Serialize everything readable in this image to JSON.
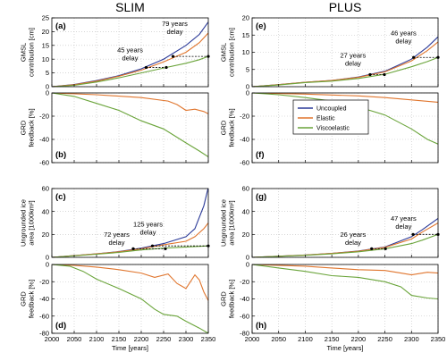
{
  "colors": {
    "uncoupled": "#2b3a98",
    "elastic": "#e0752d",
    "viscoelastic": "#6aa43a",
    "grid": "#bfbfbf",
    "axis": "#000000"
  },
  "chart_data": {
    "type": "line",
    "legend": {
      "placement": "top-right of panel (f)",
      "entries": [
        "Uncoupled",
        "Elastic",
        "Viscoelastic"
      ]
    },
    "x_axis": {
      "label": "Time [years]",
      "range": [
        2000,
        2350
      ],
      "ticks": [
        "2000",
        "2050",
        "2100",
        "2150",
        "2200",
        "2250",
        "2300",
        "2350"
      ]
    },
    "columns": [
      {
        "title": "SLIM"
      },
      {
        "title": "PLUS"
      }
    ],
    "row_labels": [
      [
        "GMSL",
        "contribution [cm]"
      ],
      [
        "GRD",
        "feedback [%]"
      ],
      [
        "Ungrounded ice",
        "area [1000km²]"
      ],
      [
        "GRD",
        "feedback [%]"
      ]
    ],
    "panels": [
      {
        "id": "a",
        "label": "(a)",
        "row": 0,
        "col": 0,
        "ylim": [
          0,
          25
        ],
        "yticks": [
          "0",
          "5",
          "10",
          "15",
          "20",
          "25"
        ],
        "series": [
          {
            "key": "uncoupled",
            "x": [
              2000,
              2050,
              2100,
              2150,
              2200,
              2250,
              2300,
              2330,
              2350
            ],
            "y": [
              0,
              0.8,
              2.2,
              4,
              6.5,
              10,
              15,
              19,
              23.5
            ]
          },
          {
            "key": "elastic",
            "x": [
              2000,
              2050,
              2100,
              2150,
              2200,
              2250,
              2300,
              2330,
              2350
            ],
            "y": [
              0,
              0.7,
              2,
              3.8,
              6,
              9,
              12.5,
              16,
              19.5
            ]
          },
          {
            "key": "viscoelastic",
            "x": [
              2000,
              2050,
              2100,
              2150,
              2200,
              2250,
              2300,
              2330,
              2350
            ],
            "y": [
              0,
              0.5,
              1.7,
              3.2,
              5,
              6.8,
              8.5,
              9.8,
              11
            ]
          }
        ],
        "delays": [
          {
            "y": 7,
            "x_from": 2211,
            "x_to": 2256,
            "text": [
              "45 years",
              "delay"
            ],
            "text_x": 2175,
            "text_y": 12.5
          },
          {
            "y": 11,
            "x_from": 2271,
            "x_to": 2350,
            "text": [
              "79 years",
              "delay"
            ],
            "text_x": 2275,
            "text_y": 22
          }
        ]
      },
      {
        "id": "b",
        "label": "(b)",
        "row": 1,
        "col": 0,
        "ylim": [
          -60,
          0
        ],
        "yticks": [
          "0",
          "-20",
          "-40",
          "-60"
        ],
        "series": [
          {
            "key": "elastic",
            "x": [
              2000,
              2100,
              2200,
              2260,
              2280,
              2300,
              2320,
              2340,
              2350
            ],
            "y": [
              0,
              -1.5,
              -4,
              -7,
              -10,
              -15,
              -14,
              -16,
              -18
            ]
          },
          {
            "key": "viscoelastic",
            "x": [
              2000,
              2050,
              2100,
              2150,
              2200,
              2250,
              2300,
              2330,
              2350
            ],
            "y": [
              0,
              -3,
              -9,
              -15,
              -24,
              -31,
              -43,
              -50,
              -55
            ]
          }
        ]
      },
      {
        "id": "c",
        "label": "(c)",
        "row": 2,
        "col": 0,
        "ylim": [
          0,
          60
        ],
        "yticks": [
          "0",
          "20",
          "40",
          "60"
        ],
        "series": [
          {
            "key": "uncoupled",
            "x": [
              2000,
              2100,
              2150,
              2200,
              2250,
              2300,
              2320,
              2340,
              2350
            ],
            "y": [
              0,
              3,
              5,
              8,
              12,
              18,
              25,
              45,
              61
            ]
          },
          {
            "key": "elastic",
            "x": [
              2000,
              2100,
              2150,
              2200,
              2250,
              2300,
              2320,
              2340,
              2350
            ],
            "y": [
              0,
              3,
              4.8,
              7.5,
              11,
              14,
              18,
              25,
              30
            ]
          },
          {
            "key": "viscoelastic",
            "x": [
              2000,
              2100,
              2150,
              2200,
              2250,
              2300,
              2350
            ],
            "y": [
              0,
              2.7,
              4.3,
              6.5,
              8,
              9,
              10
            ]
          }
        ],
        "delays": [
          {
            "y": 7.5,
            "x_from": 2182,
            "x_to": 2254,
            "text": [
              "72 years",
              "delay"
            ],
            "text_x": 2145,
            "text_y": 18
          },
          {
            "y": 10,
            "x_from": 2225,
            "x_to": 2350,
            "text": [
              "125 years",
              "delay"
            ],
            "text_x": 2215,
            "text_y": 27
          }
        ]
      },
      {
        "id": "d",
        "label": "(d)",
        "row": 3,
        "col": 0,
        "ylim": [
          -80,
          0
        ],
        "yticks": [
          "0",
          "-20",
          "-40",
          "-60",
          "-80"
        ],
        "series": [
          {
            "key": "elastic",
            "x": [
              2000,
              2050,
              2100,
              2150,
              2200,
              2230,
              2260,
              2280,
              2300,
              2310,
              2320,
              2330,
              2340,
              2350
            ],
            "y": [
              0,
              -1,
              -3,
              -6,
              -10,
              -15,
              -11,
              -22,
              -28,
              -20,
              -12,
              -18,
              -32,
              -42
            ]
          },
          {
            "key": "viscoelastic",
            "x": [
              2000,
              2040,
              2070,
              2100,
              2150,
              2200,
              2230,
              2250,
              2280,
              2300,
              2330,
              2350
            ],
            "y": [
              0,
              -2,
              -8,
              -17,
              -28,
              -40,
              -52,
              -58,
              -60,
              -66,
              -74,
              -80
            ]
          }
        ]
      },
      {
        "id": "e",
        "label": "(e)",
        "row": 0,
        "col": 1,
        "ylim": [
          0,
          20
        ],
        "yticks": [
          "0",
          "5",
          "10",
          "15",
          "20"
        ],
        "series": [
          {
            "key": "uncoupled",
            "x": [
              2000,
              2050,
              2100,
              2150,
              2200,
              2250,
              2300,
              2330,
              2350
            ],
            "y": [
              0,
              0.6,
              1.3,
              1.8,
              2.8,
              4.5,
              8,
              11.5,
              14.5
            ]
          },
          {
            "key": "elastic",
            "x": [
              2000,
              2050,
              2100,
              2150,
              2200,
              2250,
              2300,
              2330,
              2350
            ],
            "y": [
              0,
              0.6,
              1.3,
              1.8,
              2.7,
              4.3,
              7.5,
              10.5,
              13
            ]
          },
          {
            "key": "viscoelastic",
            "x": [
              2000,
              2050,
              2100,
              2150,
              2200,
              2250,
              2300,
              2330,
              2350
            ],
            "y": [
              0,
              0.5,
              1.2,
              1.6,
              2.4,
              3.6,
              5.8,
              7.3,
              8.5
            ]
          }
        ],
        "delays": [
          {
            "y": 3.5,
            "x_from": 2222,
            "x_to": 2249,
            "text": [
              "27 years",
              "delay"
            ],
            "text_x": 2190,
            "text_y": 8.5
          },
          {
            "y": 8.5,
            "x_from": 2304,
            "x_to": 2350,
            "text": [
              "46 years",
              "delay"
            ],
            "text_x": 2285,
            "text_y": 15
          }
        ]
      },
      {
        "id": "f",
        "label": "(f)",
        "row": 1,
        "col": 1,
        "ylim": [
          -60,
          0
        ],
        "yticks": [
          "0",
          "-20",
          "-40",
          "-60"
        ],
        "series": [
          {
            "key": "elastic",
            "x": [
              2000,
              2100,
              2200,
              2250,
              2300,
              2350
            ],
            "y": [
              0,
              -1,
              -2.5,
              -4,
              -6,
              -8
            ]
          },
          {
            "key": "viscoelastic",
            "x": [
              2000,
              2050,
              2100,
              2150,
              2200,
              2250,
              2300,
              2330,
              2350
            ],
            "y": [
              0,
              -1.5,
              -4,
              -7,
              -12,
              -19,
              -31,
              -40,
              -44
            ]
          }
        ]
      },
      {
        "id": "g",
        "label": "(g)",
        "row": 2,
        "col": 1,
        "ylim": [
          0,
          60
        ],
        "yticks": [
          "0",
          "20",
          "40",
          "60"
        ],
        "series": [
          {
            "key": "uncoupled",
            "x": [
              2000,
              2100,
              2150,
              2200,
              2250,
              2300,
              2320,
              2350
            ],
            "y": [
              0,
              2,
              3.5,
              5.5,
              9,
              18,
              24,
              34
            ]
          },
          {
            "key": "elastic",
            "x": [
              2000,
              2100,
              2150,
              2200,
              2250,
              2300,
              2320,
              2350
            ],
            "y": [
              0,
              2,
              3.4,
              5.3,
              8.7,
              16,
              22,
              30
            ]
          },
          {
            "key": "viscoelastic",
            "x": [
              2000,
              2100,
              2150,
              2200,
              2250,
              2300,
              2320,
              2350
            ],
            "y": [
              0,
              1.8,
              3,
              4.8,
              7.5,
              12,
              15,
              20
            ]
          }
        ],
        "delays": [
          {
            "y": 7.5,
            "x_from": 2225,
            "x_to": 2251,
            "text": [
              "26 years",
              "delay"
            ],
            "text_x": 2190,
            "text_y": 18
          },
          {
            "y": 20,
            "x_from": 2303,
            "x_to": 2350,
            "text": [
              "47 years",
              "delay"
            ],
            "text_x": 2285,
            "text_y": 32
          }
        ]
      },
      {
        "id": "h",
        "label": "(h)",
        "row": 3,
        "col": 1,
        "ylim": [
          -80,
          0
        ],
        "yticks": [
          "0",
          "-20",
          "-40",
          "-60",
          "-80"
        ],
        "series": [
          {
            "key": "elastic",
            "x": [
              2000,
              2100,
              2150,
              2200,
              2250,
              2280,
              2300,
              2330,
              2350
            ],
            "y": [
              0,
              -2,
              -4,
              -6,
              -7,
              -10,
              -12,
              -9,
              -10
            ]
          },
          {
            "key": "viscoelastic",
            "x": [
              2000,
              2050,
              2100,
              2150,
              2200,
              2250,
              2280,
              2300,
              2330,
              2350
            ],
            "y": [
              0,
              -4,
              -8,
              -13,
              -15,
              -20,
              -26,
              -36,
              -39,
              -40
            ]
          }
        ]
      }
    ]
  }
}
